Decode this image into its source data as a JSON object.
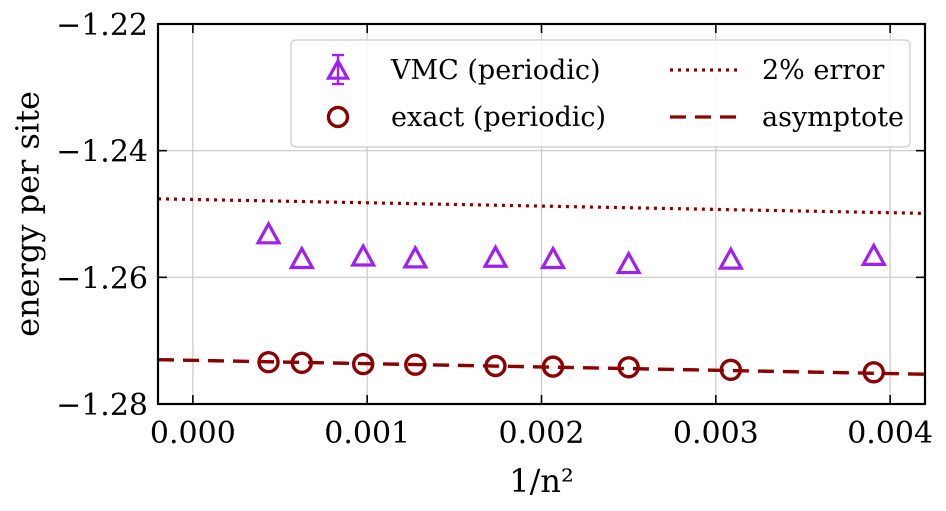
{
  "chart_data": {
    "type": "scatter",
    "xlabel": "1/n²",
    "ylabel": "energy per site",
    "xlim": [
      -0.0002,
      0.0042
    ],
    "ylim": [
      -1.28,
      -1.22
    ],
    "x_ticks": [
      0.0,
      0.001,
      0.002,
      0.003,
      0.004
    ],
    "x_tick_labels": [
      "0.000",
      "0.001",
      "0.002",
      "0.003",
      "0.004"
    ],
    "y_ticks": [
      -1.28,
      -1.26,
      -1.24,
      -1.22
    ],
    "y_tick_labels": [
      "−1.28",
      "−1.26",
      "−1.24",
      "−1.22"
    ],
    "grid": true,
    "legend_position": "top-right",
    "series": [
      {
        "name": "VMC (periodic)",
        "kind": "markers",
        "marker": "triangle",
        "color": "#a020f0",
        "points": [
          [
            0.000434,
            -1.2533
          ],
          [
            0.000625,
            -1.2572
          ],
          [
            0.000977,
            -1.2568
          ],
          [
            0.001276,
            -1.2571
          ],
          [
            0.001736,
            -1.257
          ],
          [
            0.002066,
            -1.2572
          ],
          [
            0.0025,
            -1.258
          ],
          [
            0.003086,
            -1.2573
          ],
          [
            0.003906,
            -1.2567
          ]
        ]
      },
      {
        "name": "exact (periodic)",
        "kind": "markers",
        "marker": "circle",
        "color": "#8b0000",
        "points": [
          [
            0.000434,
            -1.2734
          ],
          [
            0.000625,
            -1.2735
          ],
          [
            0.000977,
            -1.2737
          ],
          [
            0.001276,
            -1.2738
          ],
          [
            0.001736,
            -1.274
          ],
          [
            0.002066,
            -1.2741
          ],
          [
            0.0025,
            -1.2742
          ],
          [
            0.003086,
            -1.2746
          ],
          [
            0.003906,
            -1.275
          ]
        ]
      },
      {
        "name": "2% error",
        "kind": "line",
        "style": "dotted",
        "color": "#8b0000",
        "points": [
          [
            -0.0002,
            -1.2476
          ],
          [
            0.0042,
            -1.2499
          ]
        ]
      },
      {
        "name": "asymptote",
        "kind": "line",
        "style": "dashed",
        "color": "#8b0000",
        "points": [
          [
            -0.0002,
            -1.273
          ],
          [
            0.0042,
            -1.2753
          ]
        ]
      }
    ]
  }
}
